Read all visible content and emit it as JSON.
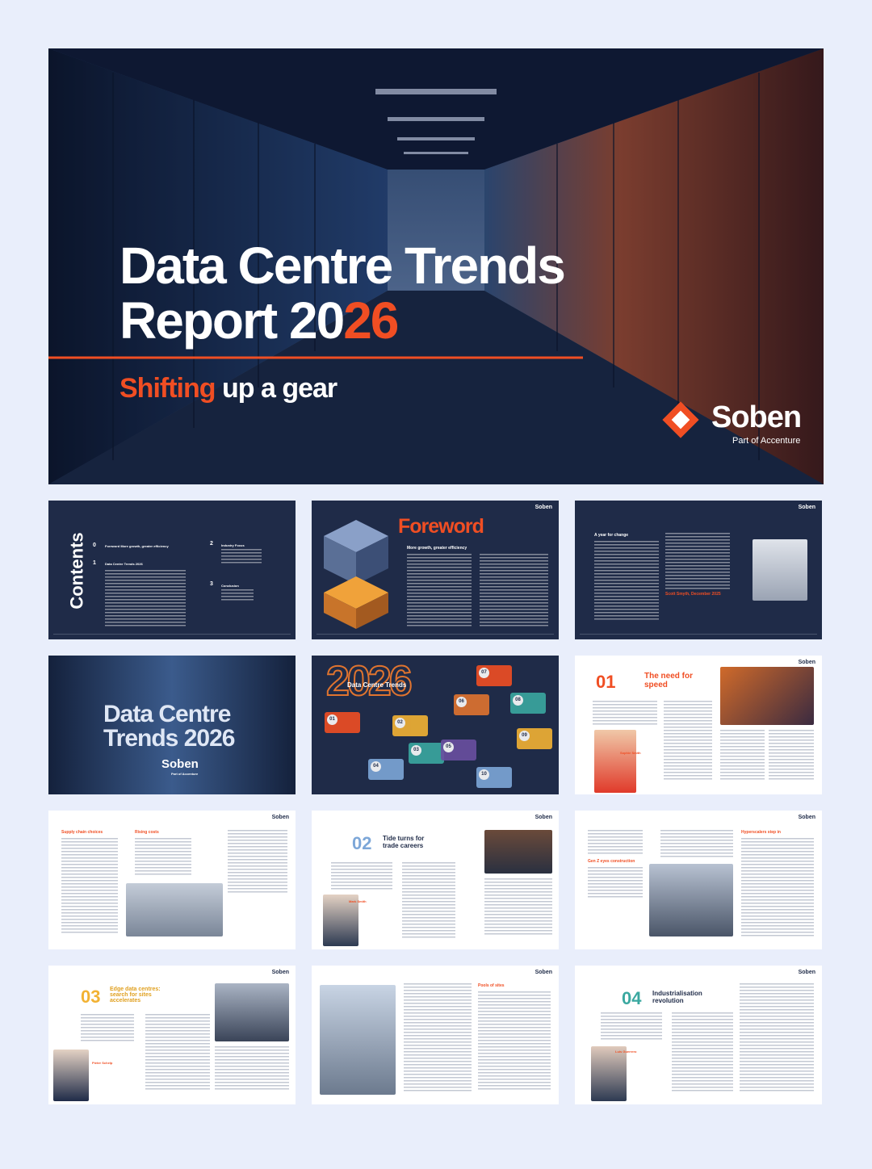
{
  "hero": {
    "title_line1": "Data Centre Trends",
    "title_line2": "Report 20",
    "title_line2_accent": "26",
    "subtitle_accent": "Shifting",
    "subtitle": "up a gear",
    "brand": "Soben",
    "brand_sub": "Part of Accenture"
  },
  "pages": [
    {
      "title": "Contents",
      "items": [
        {
          "number": "0",
          "text": "Foreword More growth, greater efficiency"
        },
        {
          "number": "1",
          "text": "Data Centre Trends 2026"
        },
        {
          "number": "2",
          "text": "Industry Focus"
        },
        {
          "number": "3",
          "text": "Conclusion"
        }
      ]
    },
    {
      "title": "Foreword",
      "subtitle": "More growth, greater efficiency"
    },
    {
      "title": "A year for change",
      "signature": "Scott Smyth, December 2025"
    },
    {
      "title_line1": "Data Centre",
      "title_line2": "Trends 2026"
    },
    {
      "title": "Data Centre Trends",
      "year": "2026",
      "steps": [
        "01",
        "02",
        "03",
        "04",
        "05",
        "06",
        "07",
        "08",
        "09",
        "10"
      ]
    },
    {
      "number": "01",
      "title": "The need for speed",
      "person": "Sophie Smith"
    },
    {
      "heading1": "Supply chain choices",
      "heading2": "Rising costs"
    },
    {
      "number": "02",
      "title": "Tide turns for trade careers",
      "person": "Mark Smith"
    },
    {
      "heading1": "Gen Z eyes construction",
      "heading2": "Hyperscalers step in"
    },
    {
      "number": "03",
      "title": "Edge data centres: search for sites accelerates",
      "person": "Pieter Schelp"
    },
    {
      "heading1": "Pools of sites"
    },
    {
      "number": "04",
      "title": "Industrialisation revolution",
      "person": "Luis Guerrero"
    }
  ]
}
